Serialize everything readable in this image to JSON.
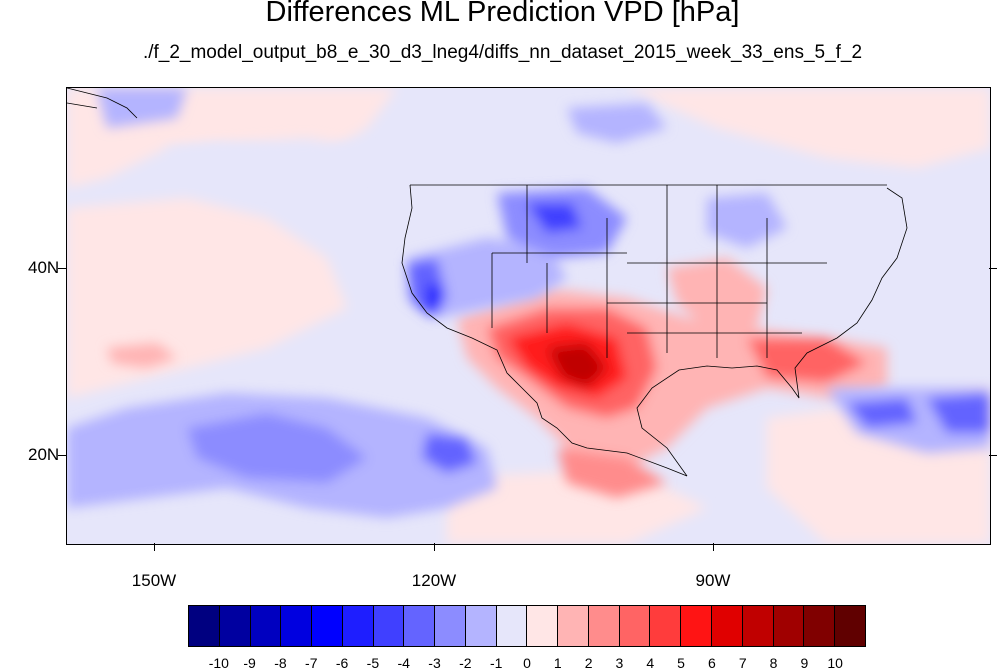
{
  "title": "Differences ML Prediction VPD [hPa]",
  "subtitle": "./f_2_model_output_b8_e_30_d3_lneg4/diffs_nn_dataset_2015_week_33_ens_5_f_2",
  "axes": {
    "lat_labels": [
      "40N",
      "20N"
    ],
    "lon_labels": [
      "150W",
      "120W",
      "90W"
    ]
  },
  "colorbar": {
    "labels": [
      "-10",
      "-9",
      "-8",
      "-7",
      "-6",
      "-5",
      "-4",
      "-3",
      "-2",
      "-1",
      "0",
      "1",
      "2",
      "3",
      "4",
      "5",
      "6",
      "7",
      "8",
      "9",
      "10"
    ],
    "colors": [
      "#000080",
      "#0000a0",
      "#0000c0",
      "#0000e0",
      "#0000ff",
      "#1e1eff",
      "#4040ff",
      "#6464ff",
      "#8c8cff",
      "#b4b4ff",
      "#e6e6fa",
      "#ffe6e6",
      "#ffb4b4",
      "#ff8c8c",
      "#ff6464",
      "#ff3c3c",
      "#ff1414",
      "#e00000",
      "#c00000",
      "#a00000",
      "#800000",
      "#600000"
    ]
  },
  "map": {
    "background_color": "#e8e8fa",
    "land_outline_color": "#000000"
  }
}
